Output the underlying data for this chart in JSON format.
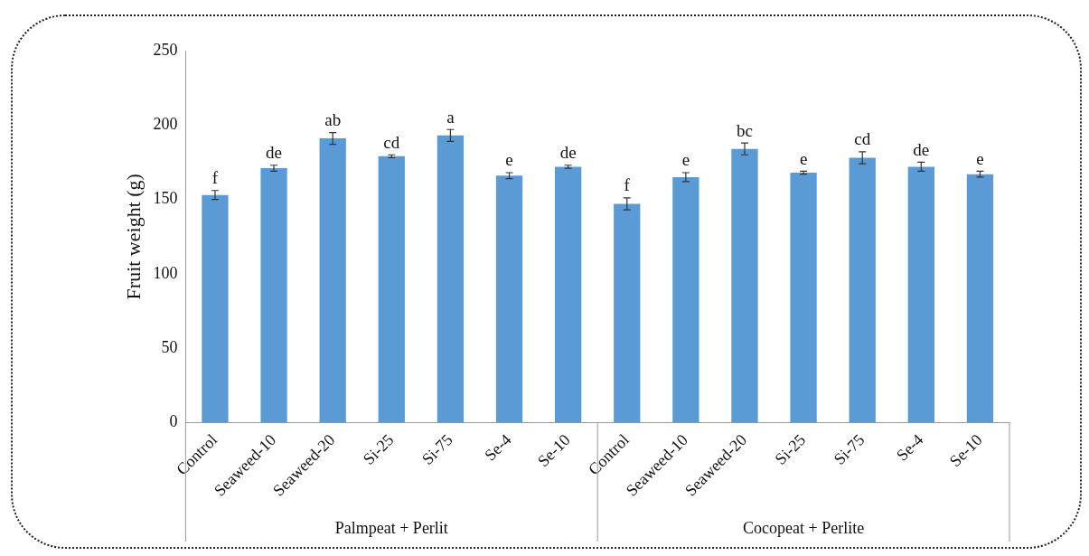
{
  "chart_data": {
    "type": "bar",
    "ylabel": "Fruit weight (g)",
    "categories": [
      "Control",
      "Seaweed-10",
      "Seaweed-20",
      "Si-25",
      "Si-75",
      "Se-4",
      "Se-10",
      "Control",
      "Seaweed-10",
      "Seaweed-20",
      "Si-25",
      "Si-75",
      "Se-4",
      "Se-10"
    ],
    "values": [
      153,
      171,
      191,
      179,
      193,
      166,
      172,
      147,
      165,
      184,
      168,
      178,
      172,
      167
    ],
    "errors": [
      3,
      2,
      4,
      1,
      4,
      2,
      1,
      4,
      3,
      4,
      1,
      4,
      3,
      2
    ],
    "value_labels": [
      "f",
      "de",
      "ab",
      "cd",
      "a",
      "e",
      "de",
      "f",
      "e",
      "bc",
      "e",
      "cd",
      "de",
      "e"
    ],
    "color": "#5b9bd5",
    "ylim": [
      0,
      250
    ],
    "yticks": [
      0,
      50,
      100,
      150,
      200,
      250
    ],
    "annotations": [
      "Palmpeat + Perlit",
      "Cocopeat + Perlite"
    ]
  }
}
